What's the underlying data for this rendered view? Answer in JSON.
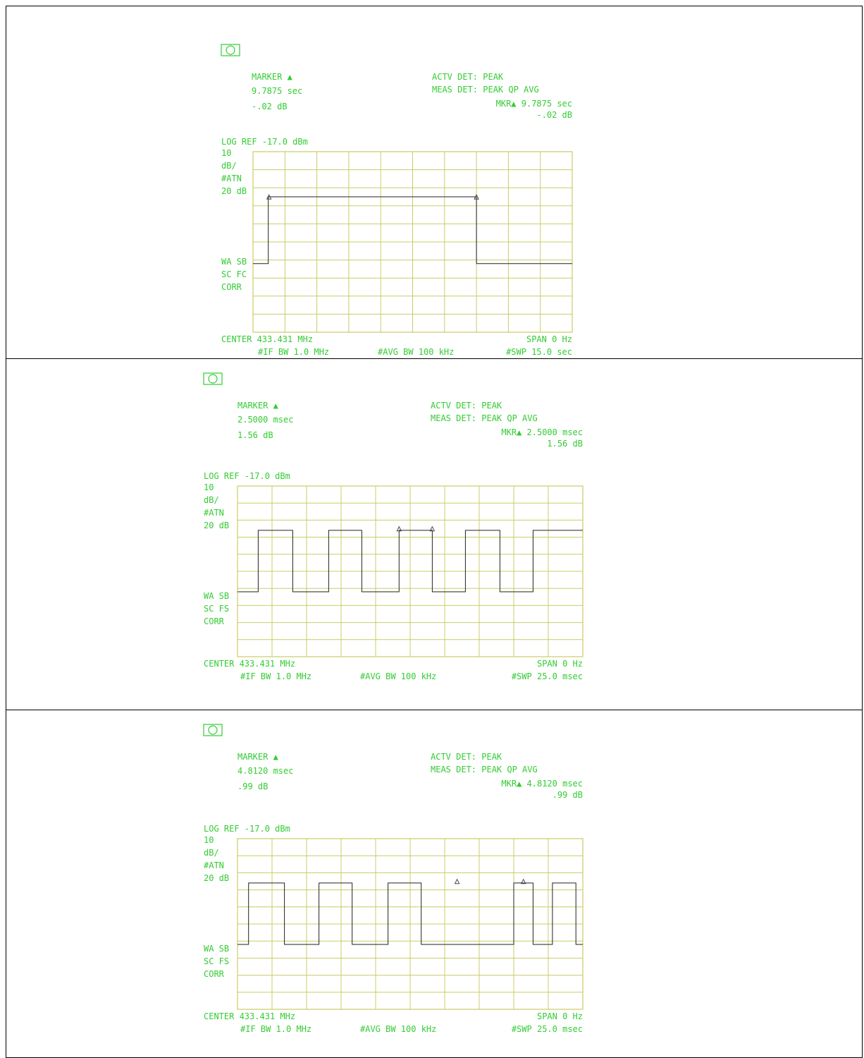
{
  "panels": [
    {
      "marker_label": "MARKER ▲",
      "marker_time": "9.7875  sec",
      "marker_db": "-.02 dB",
      "actv_det": "ACTV DET: PEAK",
      "meas_det": "MEAS DET: PEAK QP AVG",
      "mkr_readout": "MKR▲ 9.7875  sec",
      "mkr_db": "-.02 dB",
      "log_ref": "LOG  REF -17.0 dBm",
      "left_labels": [
        "10",
        "dB/",
        "#ATN",
        "20 dB"
      ],
      "lower_labels": [
        "WA SB",
        "SC FC",
        "CORR"
      ],
      "center": "CENTER 433.431 MHz",
      "span": "SPAN 0 Hz",
      "if_bw": "#IF BW 1.0 MHz",
      "avg_bw": "#AVG BW 100 kHz",
      "swp": "#SWP 15.0  sec"
    },
    {
      "marker_label": "MARKER ▲",
      "marker_time": "2.5000 msec",
      "marker_db": "1.56 dB",
      "actv_det": "ACTV DET: PEAK",
      "meas_det": "MEAS DET: PEAK QP AVG",
      "mkr_readout": "MKR▲ 2.5000 msec",
      "mkr_db": "1.56 dB",
      "log_ref": "LOG  REF -17.0 dBm",
      "left_labels": [
        "10",
        "dB/",
        "#ATN",
        "20 dB"
      ],
      "lower_labels": [
        "WA SB",
        "SC FS",
        "CORR"
      ],
      "center": "CENTER 433.431 MHz",
      "span": "SPAN 0 Hz",
      "if_bw": "#IF BW 1.0 MHz",
      "avg_bw": "#AVG BW 100 kHz",
      "swp": "#SWP 25.0 msec"
    },
    {
      "marker_label": "MARKER ▲",
      "marker_time": "4.8120 msec",
      "marker_db": ".99 dB",
      "actv_det": "ACTV DET: PEAK",
      "meas_det": "MEAS DET: PEAK QP AVG",
      "mkr_readout": "MKR▲ 4.8120 msec",
      "mkr_db": ".99 dB",
      "log_ref": "LOG  REF -17.0 dBm",
      "left_labels": [
        "10",
        "dB/",
        "#ATN",
        "20 dB"
      ],
      "lower_labels": [
        "WA SB",
        "SC FS",
        "CORR"
      ],
      "center": "CENTER 433.431 MHz",
      "span": "SPAN 0 Hz",
      "if_bw": "#IF BW 1.0 MHz",
      "avg_bw": "#AVG BW 100 kHz",
      "swp": "#SWP 25.0 msec"
    }
  ],
  "chart_data": [
    {
      "type": "line",
      "xlabel": "",
      "ylabel": "",
      "xlim": [
        0,
        15.0
      ],
      "ylim": [
        -117,
        -17
      ],
      "grid": true,
      "x_unit": "sec",
      "y_unit": "dBm",
      "series": [
        {
          "x": [
            0,
            0.72,
            0.72,
            0.75,
            9.8,
            10.5,
            10.5,
            15.0
          ],
          "values": [
            -79,
            -79,
            -42,
            -42,
            -42,
            -42,
            -79,
            -79
          ]
        }
      ],
      "markers": [
        0.75,
        10.5
      ]
    },
    {
      "type": "line",
      "xlabel": "",
      "ylabel": "",
      "xlim": [
        0,
        25.0
      ],
      "ylim": [
        -117,
        -17
      ],
      "grid": true,
      "x_unit": "msec",
      "y_unit": "dBm",
      "series": [
        {
          "x": [
            0,
            1.5,
            1.5,
            4.0,
            4.0,
            6.6,
            6.6,
            9.0,
            9.0,
            11.7,
            11.7,
            14.1,
            14.1,
            16.5,
            16.5,
            19.0,
            19.0,
            21.4,
            21.4,
            25.0
          ],
          "values": [
            -79,
            -79,
            -43,
            -43,
            -79,
            -79,
            -43,
            -43,
            -79,
            -79,
            -43,
            -43,
            -79,
            -79,
            -43,
            -43,
            -79,
            -79,
            -43,
            -43
          ]
        }
      ],
      "markers": [
        11.7,
        14.1
      ]
    },
    {
      "type": "line",
      "xlabel": "",
      "ylabel": "",
      "xlim": [
        0,
        25.0
      ],
      "ylim": [
        -117,
        -17
      ],
      "grid": true,
      "x_unit": "msec",
      "y_unit": "dBm",
      "series": [
        {
          "x": [
            0,
            0.8,
            0.8,
            3.4,
            3.4,
            5.9,
            5.9,
            8.3,
            8.3,
            10.9,
            10.9,
            13.3,
            13.3,
            20.0,
            20.0,
            21.4,
            21.4,
            22.8,
            22.8,
            24.5,
            24.5,
            25.0
          ],
          "values": [
            -79,
            -79,
            -43,
            -43,
            -79,
            -79,
            -43,
            -43,
            -79,
            -79,
            -43,
            -43,
            -79,
            -79,
            -43,
            -43,
            -79,
            -79,
            -43,
            -43,
            -79,
            -79
          ]
        }
      ],
      "markers": [
        15.9,
        20.7
      ]
    }
  ]
}
